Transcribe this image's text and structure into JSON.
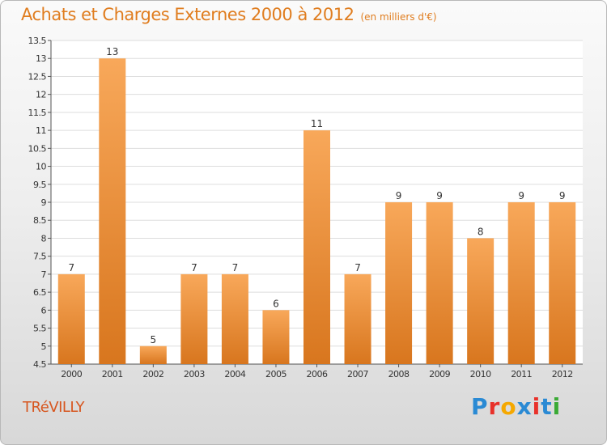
{
  "header": {
    "title": "Achats et Charges Externes 2000 à 2012",
    "unit": "(en milliers d'€)"
  },
  "footer": {
    "city": "TRéVILLY",
    "brand": "Proxiti",
    "brand_colors": [
      "#2a8ad4",
      "#e8312a",
      "#f5a800",
      "#2a8ad4",
      "#e8312a",
      "#2a8ad4",
      "#3aaa35"
    ]
  },
  "colors": {
    "bar_top": "#f8a85a",
    "bar_bottom": "#d8761e",
    "title": "#e07d1f",
    "city": "#d7561f"
  },
  "chart_data": {
    "type": "bar",
    "title": "Achats et Charges Externes 2000 à 2012",
    "subtitle": "(en milliers d'€)",
    "categories": [
      "2000",
      "2001",
      "2002",
      "2003",
      "2004",
      "2005",
      "2006",
      "2007",
      "2008",
      "2009",
      "2010",
      "2011",
      "2012"
    ],
    "values": [
      7,
      13,
      5,
      7,
      7,
      6,
      11,
      7,
      9,
      9,
      8,
      9,
      9
    ],
    "ylim": [
      4.5,
      13.5
    ],
    "yticks": [
      4.5,
      5,
      5.5,
      6,
      6.5,
      7,
      7.5,
      8,
      8.5,
      9,
      9.5,
      10,
      10.5,
      11,
      11.5,
      12,
      12.5,
      13,
      13.5
    ],
    "ytick_labels": [
      "4.5",
      "5",
      "5.5",
      "6",
      "6.5",
      "7",
      "7.5",
      "8",
      "8.5",
      "9",
      "9.5",
      "10",
      "10.5",
      "11",
      "11.5",
      "12",
      "12.5",
      "13",
      "13.5"
    ],
    "grid": true,
    "data_labels": true,
    "xlabel": "",
    "ylabel": ""
  }
}
